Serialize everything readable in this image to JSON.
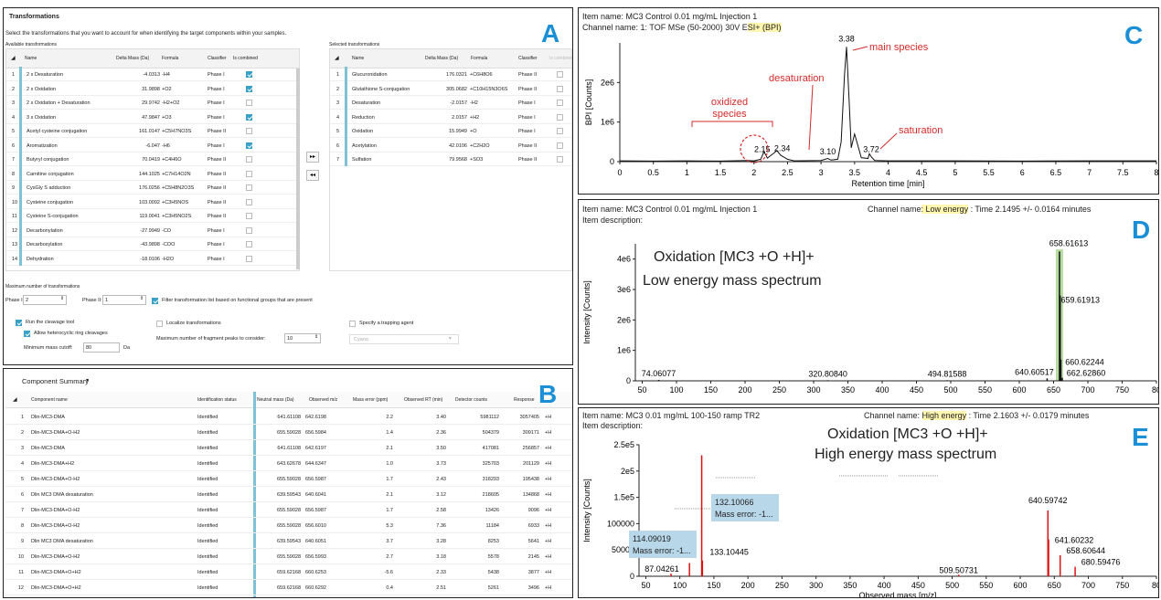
{
  "panelA": {
    "title": "Transformations",
    "instruction": "Select the transformations that you want to account for when identifying the target components within your samples.",
    "available_label": "Available transformations",
    "selected_label": "Selected transformations",
    "columns": [
      "Name",
      "Delta Mass (Da)",
      "Formula",
      "Classifier",
      "Is combined"
    ],
    "sel_columns": [
      "Name",
      "Delta Mass (Da)",
      "Formula",
      "Classifier",
      "Is combined"
    ],
    "available": [
      {
        "n": "1",
        "name": "2 x Desaturation",
        "delta": "-4.0313",
        "formula": "-H4",
        "cls": "Phase I",
        "comb": true
      },
      {
        "n": "2",
        "name": "2 x Oxidation",
        "delta": "31.9898",
        "formula": "+O2",
        "cls": "Phase I",
        "comb": true
      },
      {
        "n": "3",
        "name": "2 x Oxidation + Desaturation",
        "delta": "29.9742",
        "formula": "-H2+O2",
        "cls": "Phase I",
        "comb": false
      },
      {
        "n": "4",
        "name": "3 x Oxidation",
        "delta": "47.9847",
        "formula": "+O3",
        "cls": "Phase I",
        "comb": true
      },
      {
        "n": "5",
        "name": "Acetyl cysteine conjugation",
        "delta": "161.0147",
        "formula": "+C5H7NO3S",
        "cls": "Phase II",
        "comb": false
      },
      {
        "n": "6",
        "name": "Aromatization",
        "delta": "-6.047",
        "formula": "-H6",
        "cls": "Phase I",
        "comb": true
      },
      {
        "n": "7",
        "name": "Butyryl conjugation",
        "delta": "70.0419",
        "formula": "+C4H6O",
        "cls": "Phase II",
        "comb": false
      },
      {
        "n": "8",
        "name": "Carnitine conjugation",
        "delta": "144.1025",
        "formula": "+C7H14O2N",
        "cls": "Phase II",
        "comb": false
      },
      {
        "n": "9",
        "name": "CysGly S adduction",
        "delta": "176.0256",
        "formula": "+C5H8N2O3S",
        "cls": "Phase II",
        "comb": false
      },
      {
        "n": "10",
        "name": "Cysteine conjugation",
        "delta": "103.0092",
        "formula": "+C3H5NOS",
        "cls": "Phase II",
        "comb": false
      },
      {
        "n": "11",
        "name": "Cysteine S-conjugation",
        "delta": "119.0041",
        "formula": "+C3H5NO2S",
        "cls": "Phase II",
        "comb": false
      },
      {
        "n": "12",
        "name": "Decarbonylation",
        "delta": "-27.9949",
        "formula": "-CO",
        "cls": "Phase I",
        "comb": false
      },
      {
        "n": "13",
        "name": "Decarboxylation",
        "delta": "-43.9898",
        "formula": "-COO",
        "cls": "Phase I",
        "comb": false
      },
      {
        "n": "14",
        "name": "Dehydration",
        "delta": "-18.0106",
        "formula": "-H2O",
        "cls": "Phase I",
        "comb": false
      }
    ],
    "selected": [
      {
        "n": "1",
        "name": "Glucuronidation",
        "delta": "176.0321",
        "formula": "+C6H8O6",
        "cls": "Phase II"
      },
      {
        "n": "2",
        "name": "Glutathione S-conjugation",
        "delta": "305.0682",
        "formula": "+C10H15N3O6S",
        "cls": "Phase II"
      },
      {
        "n": "3",
        "name": "Desaturation",
        "delta": "-2.0157",
        "formula": "-H2",
        "cls": "Phase I"
      },
      {
        "n": "4",
        "name": "Reduction",
        "delta": "2.0157",
        "formula": "+H2",
        "cls": "Phase I"
      },
      {
        "n": "5",
        "name": "Oxidation",
        "delta": "15.9949",
        "formula": "+O",
        "cls": "Phase I"
      },
      {
        "n": "6",
        "name": "Acetylation",
        "delta": "42.0106",
        "formula": "+C2H2O",
        "cls": "Phase II"
      },
      {
        "n": "7",
        "name": "Sulfation",
        "delta": "79.9568",
        "formula": "+SO3",
        "cls": "Phase II"
      }
    ],
    "add_btn": "▸▸",
    "remove_btn": "◂◂",
    "max_label": "Maximum number of transformations",
    "phase1_label": "Phase I:",
    "phase1_val": "2",
    "phase2_label": "Phase II:",
    "phase2_val": "1",
    "filter_label": "Filter transformation list based on functional groups that are present",
    "cleavage_label": "Run the cleavage tool",
    "hetero_label": "Allow heterocyclic ring cleavages",
    "min_mass_label": "Minimum mass cutoff:",
    "min_mass_val": "80",
    "min_mass_unit": "Da",
    "localize_label": "Localize transformations",
    "maxfrag_label": "Maximum number of fragment peaks to consider:",
    "maxfrag_val": "10",
    "trap_label": "Specify a trapping agent",
    "trap_val": "Cyano",
    "letter": "A"
  },
  "panelB": {
    "title": "Component Summary",
    "columns": [
      "Component name",
      "Identification status",
      "Neutral mass (Da)",
      "Observed m/z",
      "Mass error (ppm)",
      "Observed RT (min)",
      "Detector counts",
      "Response"
    ],
    "rows": [
      {
        "n": "1",
        "name": "Dlin-MC3-DMA",
        "status": "Identified",
        "mass": "641.61108",
        "mz": "642.6198",
        "err": "2.2",
        "rt": "3.40",
        "det": "5981112",
        "resp": "3057405",
        "add": "+H"
      },
      {
        "n": "2",
        "name": "Dlin-MC3-DMA+O-H2",
        "status": "Identified",
        "mass": "655.59028",
        "mz": "656.5984",
        "err": "1.4",
        "rt": "2.36",
        "det": "504379",
        "resp": "309171",
        "add": "+H"
      },
      {
        "n": "3",
        "name": "Dlin-MC3-DMA",
        "status": "Identified",
        "mass": "641.61108",
        "mz": "642.6197",
        "err": "2.1",
        "rt": "3.50",
        "det": "417081",
        "resp": "256857",
        "add": "+H"
      },
      {
        "n": "4",
        "name": "Dlin-MC3-DMA+H2",
        "status": "Identified",
        "mass": "643.62678",
        "mz": "644.6347",
        "err": "1.0",
        "rt": "3.73",
        "det": "325703",
        "resp": "201129",
        "add": "+H"
      },
      {
        "n": "5",
        "name": "Dlin-MC3-DMA+O-H2",
        "status": "Identified",
        "mass": "655.59028",
        "mz": "656.5987",
        "err": "1.7",
        "rt": "2.43",
        "det": "318293",
        "resp": "195438",
        "add": "+H"
      },
      {
        "n": "6",
        "name": "Dlin MC3 DMA desaturation",
        "status": "Identified",
        "mass": "639.59543",
        "mz": "640.6041",
        "err": "2.1",
        "rt": "3.12",
        "det": "218605",
        "resp": "134868",
        "add": "+H"
      },
      {
        "n": "7",
        "name": "Dlin-MC3-DMA+O-H2",
        "status": "Identified",
        "mass": "655.59028",
        "mz": "656.5987",
        "err": "1.7",
        "rt": "2.58",
        "det": "13426",
        "resp": "9096",
        "add": "+H"
      },
      {
        "n": "8",
        "name": "Dlin-MC3-DMA+O-H2",
        "status": "Identified",
        "mass": "655.59028",
        "mz": "656.6010",
        "err": "5.3",
        "rt": "7.36",
        "det": "11184",
        "resp": "6933",
        "add": "+H"
      },
      {
        "n": "9",
        "name": "Dlin MC3 DMA desaturation",
        "status": "Identified",
        "mass": "639.59543",
        "mz": "640.6051",
        "err": "3.7",
        "rt": "3.28",
        "det": "8253",
        "resp": "5641",
        "add": "+H"
      },
      {
        "n": "10",
        "name": "Dlin-MC3-DMA+O-H2",
        "status": "Identified",
        "mass": "655.59028",
        "mz": "656.5993",
        "err": "2.7",
        "rt": "3.18",
        "det": "5578",
        "resp": "2145",
        "add": "+H"
      },
      {
        "n": "11",
        "name": "Dlin-MC3-DMA+O+H2",
        "status": "Identified",
        "mass": "659.62168",
        "mz": "660.6253",
        "err": "-5.6",
        "rt": "2.33",
        "det": "5438",
        "resp": "3877",
        "add": "+H"
      },
      {
        "n": "12",
        "name": "Dlin-MC3-DMA+O+H2",
        "status": "Identified",
        "mass": "659.62168",
        "mz": "660.6292",
        "err": "0.4",
        "rt": "2.51",
        "det": "5261",
        "resp": "3496",
        "add": "+H"
      }
    ],
    "letter": "B"
  },
  "panelC": {
    "item": "Item name: MC3 Control 0.01 mg/mL Injection 1",
    "channel_pre": "Channel name: 1: TOF MSe (50-2000) 30V E",
    "channel_hl": "SI+ (BPI)",
    "letter": "C",
    "annotations": {
      "main": "main species",
      "desat": "desaturation",
      "oxid1": "oxidized",
      "oxid2": "species",
      "sat": "saturation"
    },
    "chart_data": {
      "type": "line",
      "xlabel": "Retention time [min]",
      "ylabel": "BPI [Counts]",
      "xlim": [
        0,
        8
      ],
      "ylim": [
        0,
        3000000
      ],
      "xticks": [
        "0",
        "0.5",
        "1",
        "1.5",
        "2",
        "2.5",
        "3",
        "3.5",
        "4",
        "4.5",
        "5",
        "5.5",
        "6",
        "6.5",
        "7",
        "7.5",
        "8"
      ],
      "yticks": [
        "0",
        "1e6",
        "2e6"
      ],
      "peak_labels": [
        {
          "x": 2.15,
          "y": 60000,
          "label": "2.15"
        },
        {
          "x": 2.34,
          "y": 80000,
          "label": "2.34"
        },
        {
          "x": 3.1,
          "y": 0,
          "label": "3.10"
        },
        {
          "x": 3.38,
          "y": 2900000,
          "label": "3.38"
        },
        {
          "x": 3.72,
          "y": 60000,
          "label": "3.72"
        }
      ],
      "series": [
        {
          "x": [
            0,
            0.5,
            1,
            1.5,
            1.9,
            2.0,
            2.1,
            2.15,
            2.2,
            2.3,
            2.34,
            2.4,
            2.5,
            2.6,
            3.0,
            3.1,
            3.15,
            3.25,
            3.3,
            3.35,
            3.38,
            3.42,
            3.45,
            3.5,
            3.55,
            3.6,
            3.7,
            3.72,
            3.75,
            3.8,
            4,
            5,
            6,
            7,
            8
          ],
          "y": [
            20000,
            15000,
            20000,
            15000,
            30000,
            20000,
            60000,
            250000,
            90000,
            220000,
            280000,
            160000,
            60000,
            20000,
            30000,
            80000,
            40000,
            60000,
            500000,
            2200000,
            2900000,
            1500000,
            350000,
            700000,
            400000,
            100000,
            80000,
            200000,
            120000,
            30000,
            20000,
            20000,
            15000,
            20000,
            20000
          ]
        }
      ]
    }
  },
  "panelD": {
    "item": "Item name: MC3 Control 0.01 mg/mL Injection 1",
    "desc": "Item description:",
    "channel_pre": "Channel name",
    "channel_hl": ": Low energy",
    "channel_post": " : Time 2.1495 +/- 0.0164 minutes",
    "title1": "Oxidation [MC3 +O +H]+",
    "title2": "Low energy mass spectrum",
    "letter": "D",
    "chart_data": {
      "type": "bar",
      "xlabel": "",
      "ylabel": "Intensity [Counts]",
      "xlim": [
        40,
        800
      ],
      "ylim": [
        0,
        4500000
      ],
      "xticks": [
        "50",
        "100",
        "150",
        "200",
        "250",
        "300",
        "350",
        "400",
        "450",
        "500",
        "550",
        "600",
        "650",
        "700",
        "750",
        "80"
      ],
      "yticks": [
        "0",
        "1e6",
        "2e6",
        "3e6",
        "4e6"
      ],
      "peaks": [
        {
          "x": 74.06077,
          "y": 30000,
          "label": "74.06077"
        },
        {
          "x": 320.8084,
          "y": 20000,
          "label": "320.80840"
        },
        {
          "x": 494.81588,
          "y": 20000,
          "label": "494.81588"
        },
        {
          "x": 640.60517,
          "y": 80000,
          "label": "640.60517"
        },
        {
          "x": 658.61613,
          "y": 4250000,
          "label": "658.61613"
        },
        {
          "x": 659.61913,
          "y": 2800000,
          "label": "659.61913"
        },
        {
          "x": 660.62244,
          "y": 700000,
          "label": "660.62244"
        },
        {
          "x": 662.6286,
          "y": 100000,
          "label": "662.62860"
        }
      ]
    }
  },
  "panelE": {
    "item": "Item name: MC3 0.01 mg/mL 100-150 ramp TR2",
    "desc": "Item description:",
    "channel_pre": "Channel name: ",
    "channel_hl": "High energy",
    "channel_post": " : Time 2.1603 +/- 0.0179 minutes",
    "title1": "Oxidation [MC3 +O +H]+",
    "title2": "High energy mass spectrum",
    "letter": "E",
    "box1_a": "132.10066",
    "box1_b": "Mass error: -1...",
    "box2_a": "114.09019",
    "box2_b": "Mass error: -1...",
    "chart_data": {
      "type": "bar",
      "xlabel": "Observed mass [m/z]",
      "ylabel": "Intensity [Counts]",
      "xlim": [
        40,
        800
      ],
      "ylim": [
        0,
        250000
      ],
      "xticks": [
        "50",
        "100",
        "150",
        "200",
        "250",
        "300",
        "350",
        "400",
        "450",
        "500",
        "550",
        "600",
        "650",
        "700",
        "750",
        "80"
      ],
      "yticks": [
        "0",
        "50000",
        "100000",
        "1.5e5",
        "2e5",
        "2.5e5"
      ],
      "peaks": [
        {
          "x": 87.04261,
          "y": 5000,
          "label": "87.04261"
        },
        {
          "x": 114.09019,
          "y": 25000,
          "label": ""
        },
        {
          "x": 132.10066,
          "y": 230000,
          "label": ""
        },
        {
          "x": 133.10445,
          "y": 30000,
          "label": "133.10445"
        },
        {
          "x": 509.50731,
          "y": 3000,
          "label": "509.50731"
        },
        {
          "x": 640.59742,
          "y": 125000,
          "label": "640.59742"
        },
        {
          "x": 641.60232,
          "y": 70000,
          "label": "641.60232"
        },
        {
          "x": 658.60644,
          "y": 40000,
          "label": "658.60644"
        },
        {
          "x": 680.59476,
          "y": 18000,
          "label": "680.59476"
        }
      ]
    }
  }
}
